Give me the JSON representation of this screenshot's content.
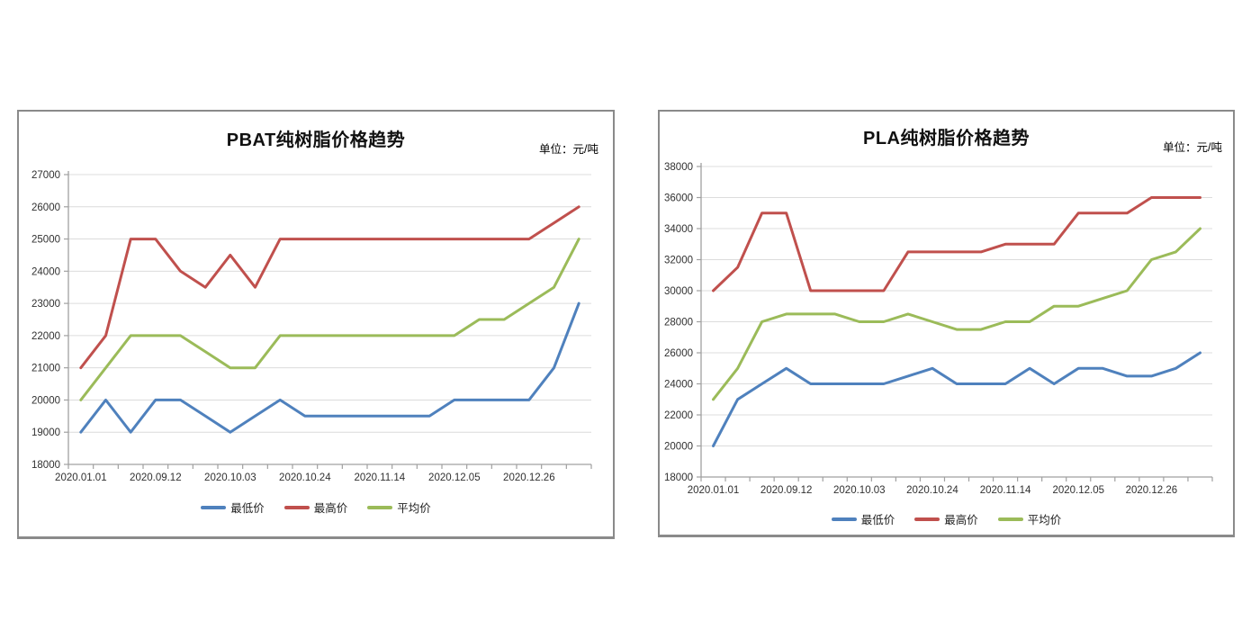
{
  "page": {
    "background": "#ffffff"
  },
  "colors": {
    "min": "#4F81BD",
    "max": "#C0504D",
    "avg": "#9BBB59",
    "grid": "#DCDCDC",
    "axis": "#A0A0A0",
    "tick_text": "#303030",
    "title_text": "#111111",
    "unit_text": "#C09B88",
    "panel_border": "#8A8A8A"
  },
  "chart_data": [
    {
      "type": "line",
      "title": "PBAT纯树脂价格趋势",
      "unit_label": "单位：元/吨",
      "ylim": [
        18000,
        27000
      ],
      "y_step": 1000,
      "n_points": 21,
      "grid": true,
      "legend_position": "bottom",
      "x_label_every": 3,
      "x_tick_labels": [
        "2020.01.01",
        "2020.09.12",
        "2020.10.03",
        "2020.10.24",
        "2020.11.14",
        "2020.12.05",
        "2020.12.26"
      ],
      "series": [
        {
          "key": "min",
          "name": "最低价",
          "values": [
            19000,
            20000,
            19000,
            20000,
            20000,
            19500,
            19000,
            19500,
            20000,
            19500,
            19500,
            19500,
            19500,
            19500,
            19500,
            20000,
            20000,
            20000,
            20000,
            21000,
            23000
          ]
        },
        {
          "key": "max",
          "name": "最高价",
          "values": [
            21000,
            22000,
            25000,
            25000,
            24000,
            23500,
            24500,
            23500,
            25000,
            25000,
            25000,
            25000,
            25000,
            25000,
            25000,
            25000,
            25000,
            25000,
            25000,
            25500,
            26000
          ]
        },
        {
          "key": "avg",
          "name": "平均价",
          "values": [
            20000,
            21000,
            22000,
            22000,
            22000,
            21500,
            21000,
            21000,
            22000,
            22000,
            22000,
            22000,
            22000,
            22000,
            22000,
            22000,
            22500,
            22500,
            23000,
            23500,
            25000
          ]
        }
      ]
    },
    {
      "type": "line",
      "title": "PLA纯树脂价格趋势",
      "unit_label": "单位：元/吨",
      "ylim": [
        18000,
        38000
      ],
      "y_step": 2000,
      "n_points": 21,
      "grid": true,
      "legend_position": "bottom",
      "x_label_every": 3,
      "x_tick_labels": [
        "2020.01.01",
        "2020.09.12",
        "2020.10.03",
        "2020.10.24",
        "2020.11.14",
        "2020.12.05",
        "2020.12.26"
      ],
      "series": [
        {
          "key": "min",
          "name": "最低价",
          "values": [
            20000,
            23000,
            24000,
            25000,
            24000,
            24000,
            24000,
            24000,
            24500,
            25000,
            24000,
            24000,
            24000,
            25000,
            24000,
            25000,
            25000,
            24500,
            24500,
            25000,
            26000
          ]
        },
        {
          "key": "max",
          "name": "最高价",
          "values": [
            30000,
            31500,
            35000,
            35000,
            30000,
            30000,
            30000,
            30000,
            32500,
            32500,
            32500,
            32500,
            33000,
            33000,
            33000,
            35000,
            35000,
            35000,
            36000,
            36000,
            36000
          ]
        },
        {
          "key": "avg",
          "name": "平均价",
          "values": [
            23000,
            25000,
            28000,
            28500,
            28500,
            28500,
            28000,
            28000,
            28500,
            28000,
            27500,
            27500,
            28000,
            28000,
            29000,
            29000,
            29500,
            30000,
            32000,
            32500,
            34000
          ]
        }
      ]
    }
  ]
}
